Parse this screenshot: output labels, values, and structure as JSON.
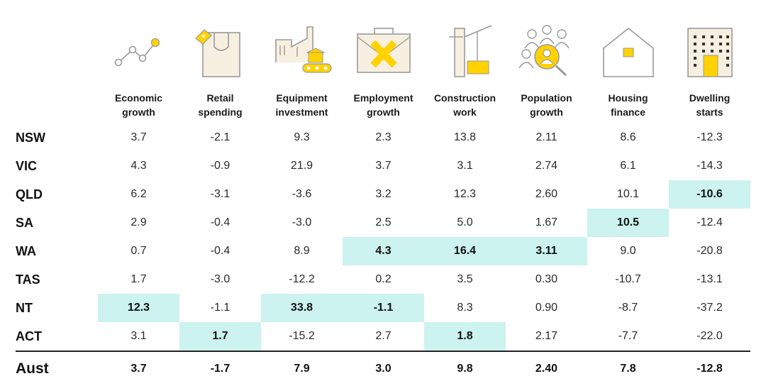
{
  "chart_data": {
    "type": "table",
    "columns": [
      {
        "line1": "Economic",
        "line2": "growth",
        "icon": "line-chart-icon"
      },
      {
        "line1": "Retail",
        "line2": "spending",
        "icon": "shopping-bag-icon"
      },
      {
        "line1": "Equipment",
        "line2": "investment",
        "icon": "factory-conveyor-icon"
      },
      {
        "line1": "Employment",
        "line2": "growth",
        "icon": "briefcase-icon"
      },
      {
        "line1": "Construction",
        "line2": "work",
        "icon": "crane-icon"
      },
      {
        "line1": "Population",
        "line2": "growth",
        "icon": "population-magnifier-icon"
      },
      {
        "line1": "Housing",
        "line2": "finance",
        "icon": "house-icon"
      },
      {
        "line1": "Dwelling",
        "line2": "starts",
        "icon": "apartment-building-icon"
      }
    ],
    "rows": [
      {
        "label": "NSW",
        "values": [
          "3.7",
          "-2.1",
          "9.3",
          "2.3",
          "13.8",
          "2.11",
          "8.6",
          "-12.3"
        ],
        "highlight": [
          false,
          false,
          false,
          false,
          false,
          false,
          false,
          false
        ]
      },
      {
        "label": "VIC",
        "values": [
          "4.3",
          "-0.9",
          "21.9",
          "3.7",
          "3.1",
          "2.74",
          "6.1",
          "-14.3"
        ],
        "highlight": [
          false,
          false,
          false,
          false,
          false,
          false,
          false,
          false
        ]
      },
      {
        "label": "QLD",
        "values": [
          "6.2",
          "-3.1",
          "-3.6",
          "3.2",
          "12.3",
          "2.60",
          "10.1",
          "-10.6"
        ],
        "highlight": [
          false,
          false,
          false,
          false,
          false,
          false,
          false,
          true
        ]
      },
      {
        "label": "SA",
        "values": [
          "2.9",
          "-0.4",
          "-3.0",
          "2.5",
          "5.0",
          "1.67",
          "10.5",
          "-12.4"
        ],
        "highlight": [
          false,
          false,
          false,
          false,
          false,
          false,
          true,
          false
        ]
      },
      {
        "label": "WA",
        "values": [
          "0.7",
          "-0.4",
          "8.9",
          "4.3",
          "16.4",
          "3.11",
          "9.0",
          "-20.8"
        ],
        "highlight": [
          false,
          false,
          false,
          true,
          true,
          true,
          false,
          false
        ]
      },
      {
        "label": "TAS",
        "values": [
          "1.7",
          "-3.0",
          "-12.2",
          "0.2",
          "3.5",
          "0.30",
          "-10.7",
          "-13.1"
        ],
        "highlight": [
          false,
          false,
          false,
          false,
          false,
          false,
          false,
          false
        ]
      },
      {
        "label": "NT",
        "values": [
          "12.3",
          "-1.1",
          "33.8",
          "-1.1",
          "8.3",
          "0.90",
          "-8.7",
          "-37.2"
        ],
        "highlight": [
          true,
          false,
          true,
          true,
          false,
          false,
          false,
          false
        ]
      },
      {
        "label": "ACT",
        "values": [
          "3.1",
          "1.7",
          "-15.2",
          "2.7",
          "1.8",
          "2.17",
          "-7.7",
          "-22.0"
        ],
        "highlight": [
          false,
          true,
          false,
          false,
          true,
          false,
          false,
          false
        ]
      }
    ],
    "total": {
      "label": "Aust",
      "values": [
        "3.7",
        "-1.7",
        "7.9",
        "3.0",
        "9.8",
        "2.40",
        "7.8",
        "-12.8"
      ]
    },
    "highlight_color": "#ccf3ef",
    "accent_color": "#ffd200"
  }
}
